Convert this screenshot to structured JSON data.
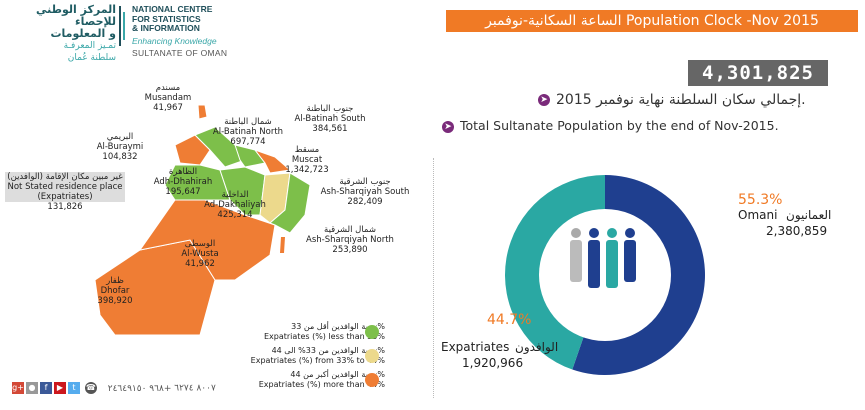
{
  "header": {
    "logo_ar_line1": "المركز الوطني",
    "logo_ar_line2": "للإحصاء",
    "logo_ar_line3": "و المعلومات",
    "logo_ar_tagline": "تمـيز المعرفـة",
    "logo_ar_sultanate": "سلطنة عُمان",
    "logo_en_line1": "NATIONAL CENTRE",
    "logo_en_line2": "FOR STATISTICS",
    "logo_en_line3": "& INFORMATION",
    "logo_en_tagline": "Enhancing Knowledge",
    "logo_en_sultanate": "SULTANATE OF OMAN",
    "title": "الساعة السكانية-نوفمبر Population Clock -Nov 2015"
  },
  "summary": {
    "total_population": "4,301,825",
    "line_ar": "إجمالي سكان السلطنة نهاية نوفمبر 2015.",
    "line_en": "Total Sultanate Population by the end of Nov-2015.",
    "bullet_icon": "arrow-right-icon"
  },
  "regions": {
    "musandam": {
      "ar": "مسندم",
      "en": "Musandam",
      "value": "41,967"
    },
    "batinah_south": {
      "ar": "جنوب الباطنة",
      "en": "Al-Batinah South",
      "value": "384,561"
    },
    "batinah_north": {
      "ar": "شمال الباطنة",
      "en": "Al-Batinah North",
      "value": "697,774"
    },
    "buraymi": {
      "ar": "البريمي",
      "en": "Al-Buraymi",
      "value": "104,832"
    },
    "muscat": {
      "ar": "مسقط",
      "en": "Muscat",
      "value": "1,342,723"
    },
    "dhahirah": {
      "ar": "الظاهرة",
      "en": "Adh-Dhahirah",
      "value": "195,647"
    },
    "sharqiyah_south": {
      "ar": "جنوب الشرقية",
      "en": "Ash-Sharqiyah South",
      "value": "282,409"
    },
    "dakhiliyah": {
      "ar": "الداخلية",
      "en": "Ad-Dakhaliyah",
      "value": "425,314"
    },
    "sharqiyah_north": {
      "ar": "شمال الشرقية",
      "en": "Ash-Sharqiyah North",
      "value": "253,890"
    },
    "wusta": {
      "ar": "الوسطى",
      "en": "Al-Wusta",
      "value": "41,962"
    },
    "dhofar": {
      "ar": "ظفار",
      "en": "Dhofar",
      "value": "398,920"
    },
    "not_stated": {
      "ar": "غير مبين مكان الإقامة (الوافدين)",
      "en": "Not Stated residence place",
      "en2": "(Expatriates)",
      "value": "131,826"
    }
  },
  "legend": [
    {
      "ar": "نسبة الوافدين أقل من 33%",
      "en": "Expatriates (%) less than 33%",
      "color": "#7dbf4a"
    },
    {
      "ar": "نسبة الوافدين من 33% الى 44%",
      "en": "Expatriates (%) from 33% to 44%",
      "color": "#ecd98c"
    },
    {
      "ar": "نسبة الوافدين أكبر من 44%",
      "en": "Expatriates (%) more than 44%",
      "color": "#ef7d34"
    }
  ],
  "colors": {
    "orange": "#f07a25",
    "omani_blue": "#1f3f8f",
    "expat_teal": "#2aa8a3",
    "green": "#7dbf4a",
    "yellow": "#ecd98c",
    "map_orange": "#ef7d34"
  },
  "pie": {
    "omani_pct": "55.3%",
    "omani_ar": "العمانيون",
    "omani_en": "Omani",
    "omani_value": "2,380,859",
    "omani_fraction": 0.553,
    "expat_pct": "44.7%",
    "expat_ar": "الوافدون",
    "expat_en": "Expatriates",
    "expat_value": "1,920,966",
    "expat_fraction": 0.447,
    "center_icon": "people-group-icon"
  },
  "footer": {
    "phone": "+٩٦٨ ٢٤٦٤٩١٥٠",
    "tollfree": "٨٠٠٧ ٦٢٧٤",
    "icons": [
      "googleplus-icon",
      "flickr-icon",
      "facebook-icon",
      "youtube-icon",
      "twitter-icon",
      "phone-icon"
    ]
  }
}
